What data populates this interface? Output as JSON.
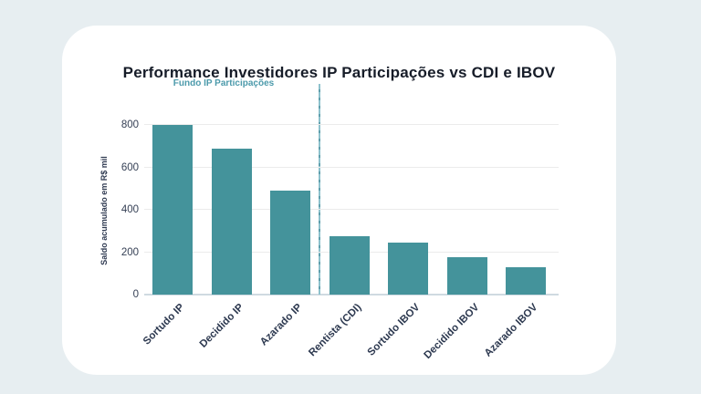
{
  "window": {
    "background_color": "#e7eef1",
    "card_color": "#ffffff"
  },
  "chart_data": {
    "type": "bar",
    "title": "Performance Investidores IP Participações vs CDI e IBOV",
    "ylabel": "Saldo acumulado em R$ mil",
    "xlabel": "",
    "categories": [
      "Sortudo IP",
      "Decidido IP",
      "Azarado IP",
      "Rentista (CDI)",
      "Sortudo IBOV",
      "Decidido IBOV",
      "Azarado IBOV"
    ],
    "values": [
      800,
      690,
      490,
      275,
      245,
      175,
      130
    ],
    "ylim": [
      0,
      800
    ],
    "yticks": [
      0,
      200,
      400,
      600,
      800
    ],
    "grid": true,
    "legend_position": "none",
    "bar_color": "#44939b",
    "annotation": {
      "text": "Fundo IP Participações",
      "color": "#4c9aab",
      "separator_after_index": 2,
      "separator_color": "#8ec2cd"
    }
  }
}
